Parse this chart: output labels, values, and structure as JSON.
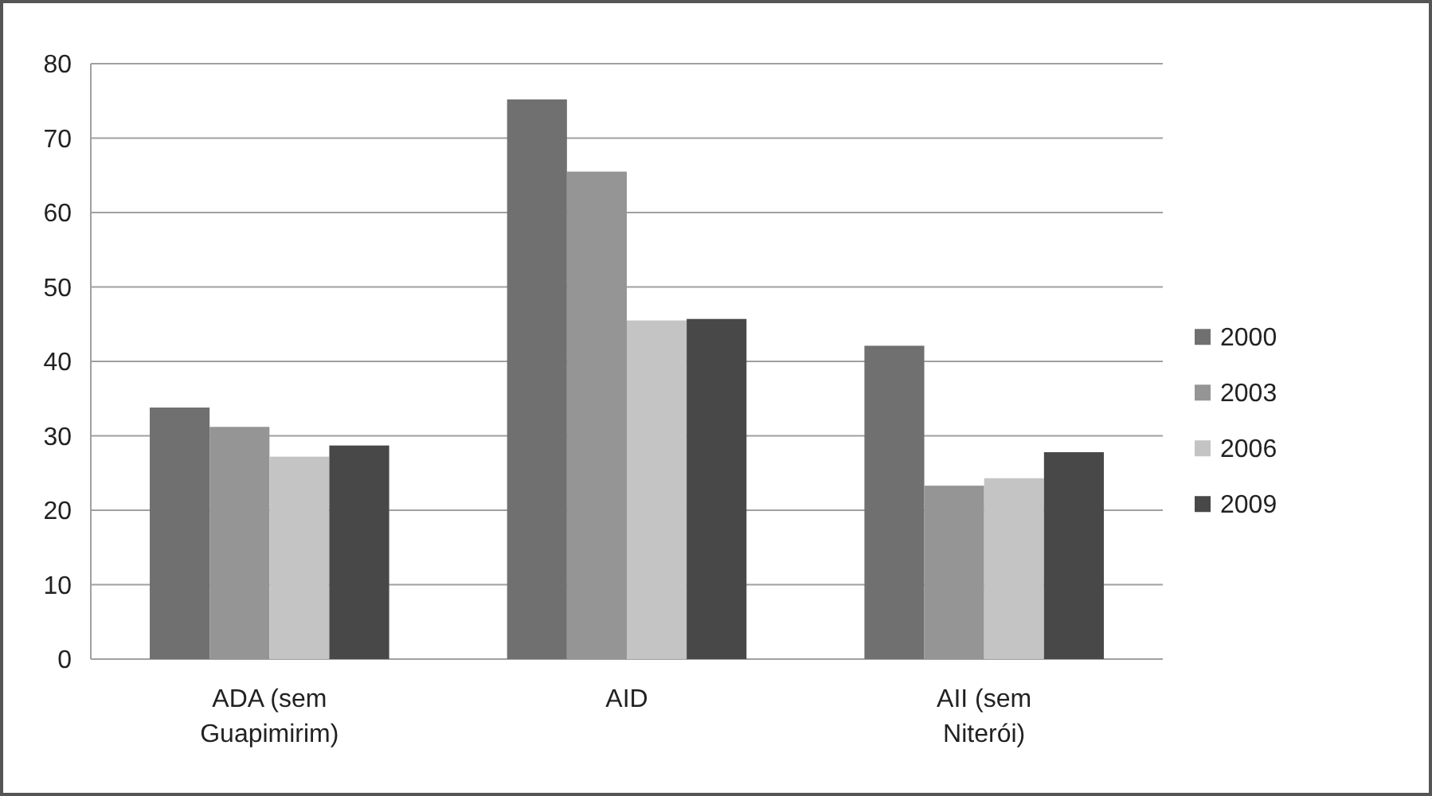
{
  "chart_data": {
    "type": "bar",
    "categories": [
      "ADA (sem Guapimirim)",
      "AID",
      "AII (sem Niterói)"
    ],
    "series": [
      {
        "name": "2000",
        "color": "#707070",
        "values": [
          33.8,
          75.2,
          42.1
        ]
      },
      {
        "name": "2003",
        "color": "#959595",
        "values": [
          31.2,
          65.5,
          23.3
        ]
      },
      {
        "name": "2006",
        "color": "#c4c4c4",
        "values": [
          27.2,
          45.5,
          24.3
        ]
      },
      {
        "name": "2009",
        "color": "#484848",
        "values": [
          28.7,
          45.7,
          27.8
        ]
      }
    ],
    "ylim": [
      0,
      80
    ],
    "yticks": [
      0,
      10,
      20,
      30,
      40,
      50,
      60,
      70,
      80
    ],
    "grid": "y",
    "legend": "right"
  }
}
